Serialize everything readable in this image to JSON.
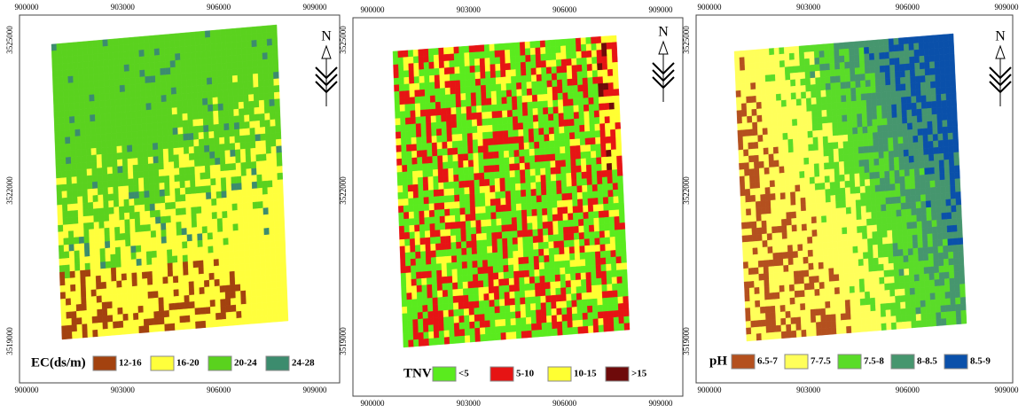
{
  "maps": [
    {
      "legend_title": "EC(ds/m)",
      "north": "N",
      "x_labels": [
        "900000",
        "903000",
        "906000",
        "909000"
      ],
      "y_labels": [
        "3525000",
        "3522000",
        "3519000"
      ],
      "classes": [
        {
          "label": "12-16",
          "color": "#a3420f"
        },
        {
          "label": "16-20",
          "color": "#ffff3c"
        },
        {
          "label": "20-24",
          "color": "#5ad21e"
        },
        {
          "label": "24-28",
          "color": "#3c8c6e"
        }
      ]
    },
    {
      "legend_title": "TNV%",
      "north": "N",
      "x_labels": [
        "900000",
        "903000",
        "906000",
        "909000"
      ],
      "y_labels": [
        "3525000",
        "3522000",
        "3519000"
      ],
      "classes": [
        {
          "label": "<5",
          "color": "#5aeb1e"
        },
        {
          "label": "5-10",
          "color": "#e61414"
        },
        {
          "label": "10-15",
          "color": "#ffff32"
        },
        {
          "label": ">15",
          "color": "#6e0a0a"
        }
      ]
    },
    {
      "legend_title": "pH",
      "north": "N",
      "x_labels": [
        "900000",
        "903000",
        "906000",
        "909000"
      ],
      "y_labels": [
        "3525000",
        "3522000",
        "3519000"
      ],
      "classes": [
        {
          "label": "6.5-7",
          "color": "#b4501e"
        },
        {
          "label": "7-7.5",
          "color": "#ffff5a"
        },
        {
          "label": "7.5-8",
          "color": "#5adc28"
        },
        {
          "label": "8-8.5",
          "color": "#46966e"
        },
        {
          "label": "8.5-9",
          "color": "#0a50aa"
        }
      ]
    }
  ]
}
